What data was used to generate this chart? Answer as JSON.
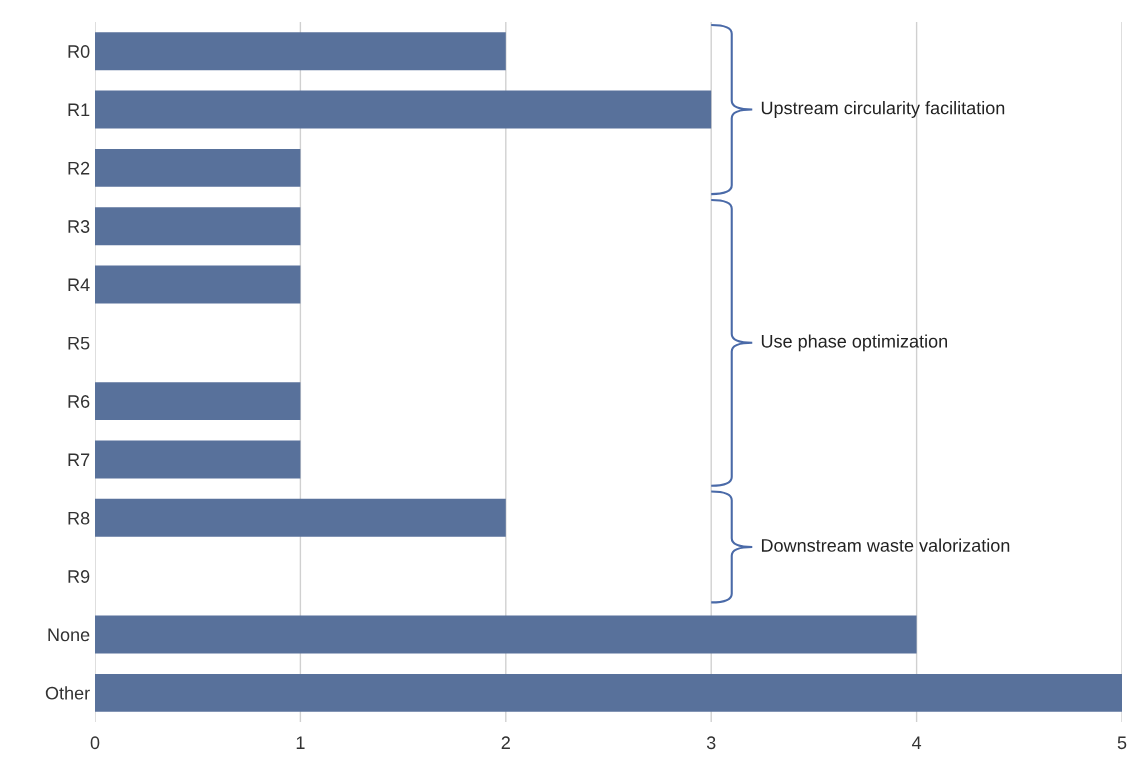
{
  "chart_data": {
    "type": "bar",
    "orientation": "horizontal",
    "categories": [
      "R0",
      "R1",
      "R2",
      "R3",
      "R4",
      "R5",
      "R6",
      "R7",
      "R8",
      "R9",
      "None",
      "Other"
    ],
    "values": [
      2,
      3,
      1,
      1,
      1,
      0,
      1,
      1,
      2,
      0,
      4,
      5
    ],
    "color": "#58719b",
    "xlim": [
      0,
      5
    ],
    "xticks": [
      0,
      1,
      2,
      3,
      4,
      5
    ],
    "grid": "x",
    "annotations": [
      "Upstream circularity facilitation",
      "Use phase optimization",
      "Downstream waste valorization"
    ]
  }
}
